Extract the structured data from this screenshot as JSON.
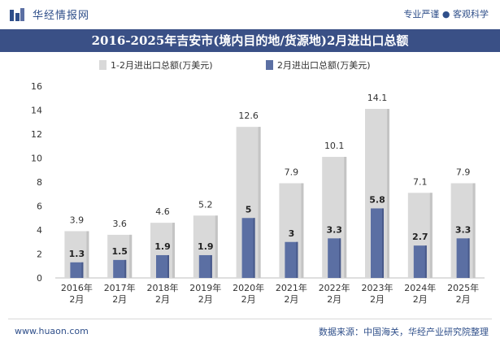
{
  "header": {
    "brand": "华经情报网",
    "slogan": "专业严谨 ● 客观科学"
  },
  "footer": {
    "website": "www.huaon.com",
    "source": "数据来源：中国海关，华经产业研究院整理"
  },
  "colors": {
    "title_band": "#3a5086",
    "series_ytd": "#d9d9d9",
    "series_month": "#5b6fa3",
    "text": "#333333"
  },
  "chart_data": {
    "type": "bar",
    "title": "2016-2025年吉安市(境内目的地/货源地)2月进出口总额",
    "categories": [
      "2016年\n2月",
      "2017年\n2月",
      "2018年\n2月",
      "2019年\n2月",
      "2020年\n2月",
      "2021年\n2月",
      "2022年\n2月",
      "2023年\n2月",
      "2024年\n2月",
      "2025年\n2月"
    ],
    "series": [
      {
        "name": "1-2月进出口总额(万美元)",
        "values": [
          3.9,
          3.6,
          4.6,
          5.2,
          12.6,
          7.9,
          10.1,
          14.1,
          7.1,
          7.9
        ]
      },
      {
        "name": "2月进出口总额(万美元)",
        "values": [
          1.3,
          1.5,
          1.9,
          1.9,
          5,
          3,
          3.3,
          5.8,
          2.7,
          3.3
        ]
      }
    ],
    "ylim": [
      0,
      16
    ],
    "yticks": [
      0,
      2,
      4,
      6,
      8,
      10,
      12,
      14,
      16
    ],
    "legend": "top",
    "grid": false
  }
}
